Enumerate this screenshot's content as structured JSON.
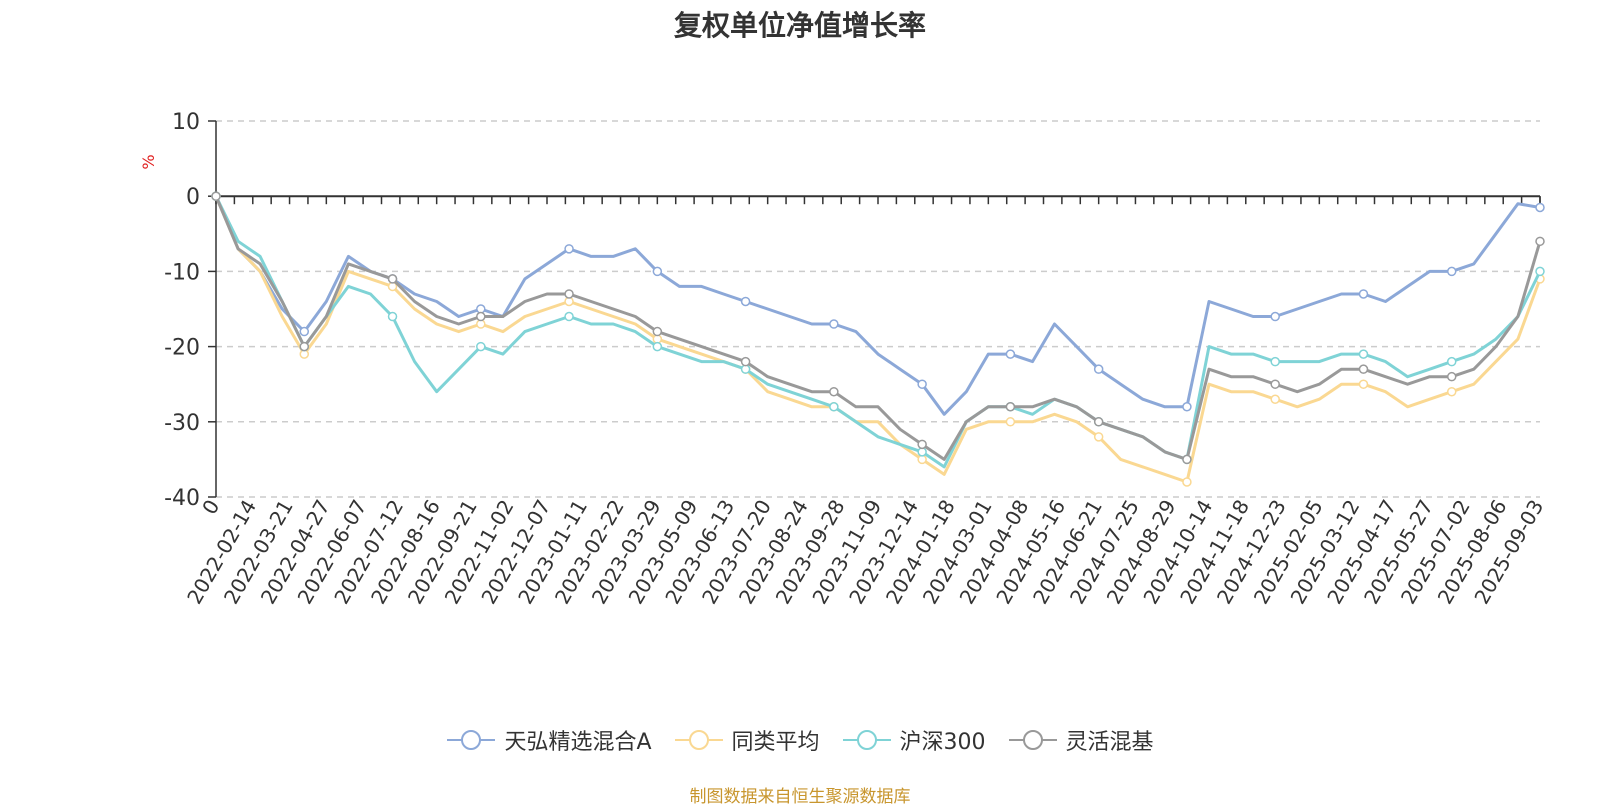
{
  "chart_data": {
    "type": "line",
    "title": "复权单位净值增长率",
    "ylabel": "%",
    "ylim": [
      -40,
      10
    ],
    "yticks": [
      10,
      0,
      -10,
      -20,
      -30,
      -40
    ],
    "grid": true,
    "legend_position": "bottom",
    "x_tick_labels": [
      "0",
      "2022-02-14",
      "2022-03-21",
      "2022-04-27",
      "2022-06-07",
      "2022-07-12",
      "2022-08-16",
      "2022-09-21",
      "2022-11-02",
      "2022-12-07",
      "2023-01-11",
      "2023-02-22",
      "2023-03-29",
      "2023-05-09",
      "2023-06-13",
      "2023-07-20",
      "2023-08-24",
      "2023-09-28",
      "2023-11-09",
      "2023-12-14",
      "2024-01-18",
      "2024-03-01",
      "2024-04-08",
      "2024-05-16",
      "2024-06-21",
      "2024-07-25",
      "2024-08-29",
      "2024-10-14",
      "2024-11-18",
      "2024-12-23",
      "2025-02-05",
      "2025-03-12",
      "2025-04-17",
      "2025-05-27",
      "2025-07-02",
      "2025-08-06",
      "2025-09-03"
    ],
    "series": [
      {
        "name": "天弘精选混合A",
        "color": "#8ca8d8",
        "values": [
          0,
          -7,
          -10,
          -15,
          -18,
          -14,
          -8,
          -10,
          -11,
          -13,
          -14,
          -16,
          -15,
          -16,
          -11,
          -9,
          -7,
          -8,
          -8,
          -7,
          -10,
          -12,
          -12,
          -13,
          -14,
          -15,
          -16,
          -17,
          -17,
          -18,
          -21,
          -23,
          -25,
          -29,
          -26,
          -21,
          -21,
          -22,
          -17,
          -20,
          -23,
          -25,
          -27,
          -28,
          -28,
          -14,
          -15,
          -16,
          -16,
          -15,
          -14,
          -13,
          -13,
          -14,
          -12,
          -10,
          -10,
          -9,
          -5,
          -1,
          -1.5
        ]
      },
      {
        "name": "同类平均",
        "color": "#fad892",
        "values": [
          0,
          -7,
          -10,
          -16,
          -21,
          -17,
          -10,
          -11,
          -12,
          -15,
          -17,
          -18,
          -17,
          -18,
          -16,
          -15,
          -14,
          -15,
          -16,
          -17,
          -19,
          -20,
          -21,
          -22,
          -23,
          -26,
          -27,
          -28,
          -28,
          -30,
          -30,
          -33,
          -35,
          -37,
          -31,
          -30,
          -30,
          -30,
          -29,
          -30,
          -32,
          -35,
          -36,
          -37,
          -38,
          -25,
          -26,
          -26,
          -27,
          -28,
          -27,
          -25,
          -25,
          -26,
          -28,
          -27,
          -26,
          -25,
          -22,
          -19,
          -11
        ]
      },
      {
        "name": "沪深300",
        "color": "#7fd3d6",
        "values": [
          0,
          -6,
          -8,
          -14,
          -20,
          -16,
          -12,
          -13,
          -16,
          -22,
          -26,
          -23,
          -20,
          -21,
          -18,
          -17,
          -16,
          -17,
          -17,
          -18,
          -20,
          -21,
          -22,
          -22,
          -23,
          -25,
          -26,
          -27,
          -28,
          -30,
          -32,
          -33,
          -34,
          -36,
          -30,
          -28,
          -28,
          -29,
          -27,
          -28,
          -30,
          -31,
          -32,
          -34,
          -35,
          -20,
          -21,
          -21,
          -22,
          -22,
          -22,
          -21,
          -21,
          -22,
          -24,
          -23,
          -22,
          -21,
          -19,
          -16,
          -10
        ]
      },
      {
        "name": "灵活混基",
        "color": "#999999",
        "values": [
          0,
          -7,
          -9,
          -14,
          -20,
          -16,
          -9,
          -10,
          -11,
          -14,
          -16,
          -17,
          -16,
          -16,
          -14,
          -13,
          -13,
          -14,
          -15,
          -16,
          -18,
          -19,
          -20,
          -21,
          -22,
          -24,
          -25,
          -26,
          -26,
          -28,
          -28,
          -31,
          -33,
          -35,
          -30,
          -28,
          -28,
          -28,
          -27,
          -28,
          -30,
          -31,
          -32,
          -34,
          -35,
          -23,
          -24,
          -24,
          -25,
          -26,
          -25,
          -23,
          -23,
          -24,
          -25,
          -24,
          -24,
          -23,
          -20,
          -16,
          -6
        ]
      }
    ]
  },
  "source_note": "制图数据来自恒生聚源数据库"
}
